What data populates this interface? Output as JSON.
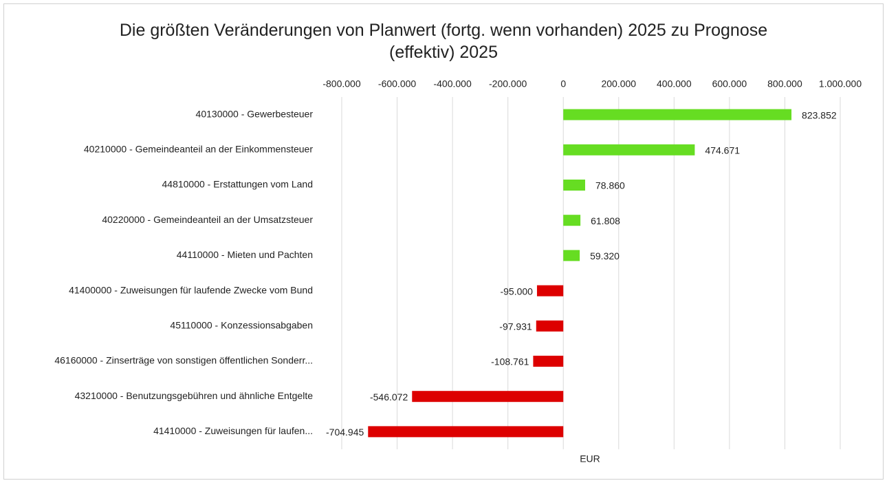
{
  "chart_data": {
    "type": "barh",
    "title": "Die größten Veränderungen von Planwert (fortg. wenn vorhanden) 2025 zu Prognose (effektiv) 2025",
    "xlabel": "EUR",
    "categories": [
      "40130000 - Gewerbesteuer",
      "40210000 - Gemeindeanteil an der Einkommensteuer",
      "44810000 - Erstattungen vom Land",
      "40220000 - Gemeindeanteil an der Umsatzsteuer",
      "44110000 - Mieten und Pachten",
      "41400000 - Zuweisungen für laufende Zwecke vom Bund",
      "45110000 - Konzessionsabgaben",
      "46160000 - Zinserträge von sonstigen öffentlichen Sonderr...",
      "43210000 - Benutzungsgebühren und ähnliche Entgelte",
      "41410000 - Zuweisungen für laufen..."
    ],
    "values": [
      823852,
      474671,
      78860,
      61808,
      59320,
      -95000,
      -97931,
      -108761,
      -546072,
      -704945
    ],
    "value_labels": [
      "823.852",
      "474.671",
      "78.860",
      "61.808",
      "59.320",
      "-95.000",
      "-97.931",
      "-108.761",
      "-546.072",
      "-704.945"
    ],
    "positive_color": "#66dd22",
    "negative_color": "#dd0000",
    "xlim": [
      -800000,
      1000000
    ],
    "xticks": [
      {
        "value": -800000,
        "label": "-800.000"
      },
      {
        "value": -600000,
        "label": "-600.000"
      },
      {
        "value": -400000,
        "label": "-400.000"
      },
      {
        "value": -200000,
        "label": "-200.000"
      },
      0,
      {
        "value": 200000,
        "label": "200.000"
      },
      {
        "value": 400000,
        "label": "400.000"
      },
      {
        "value": 600000,
        "label": "600.000"
      },
      {
        "value": 800000,
        "label": "800.000"
      },
      {
        "value": 1000000,
        "label": "1.000.000"
      }
    ],
    "grid": true
  }
}
